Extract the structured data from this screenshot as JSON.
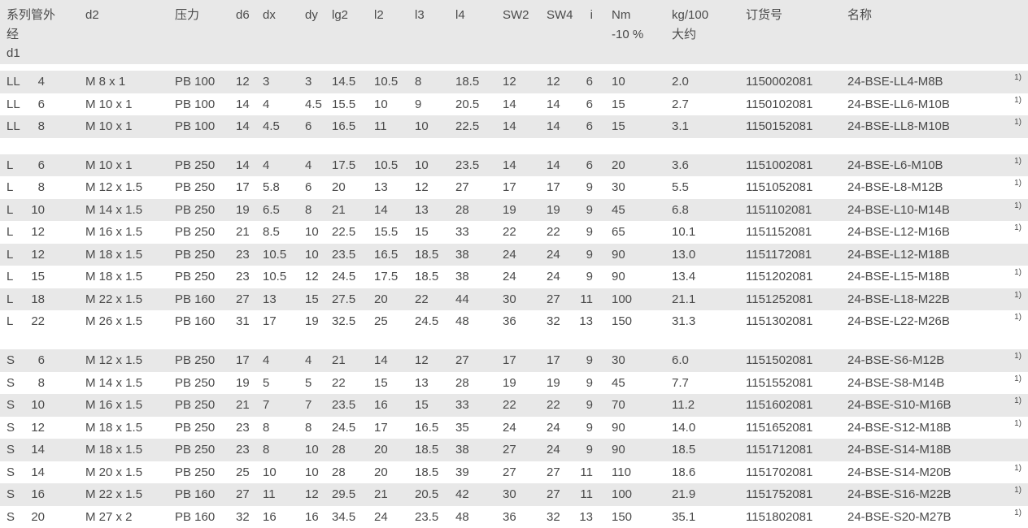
{
  "colors": {
    "stripe": "#e8e8e8",
    "text": "#4a4a4a"
  },
  "table": {
    "header": {
      "series_d1": "系列管外\n经\nd1",
      "d2": "d2",
      "pressure": "压力",
      "d6": "d6",
      "dx": "dx",
      "dy": "dy",
      "lg2": "lg2",
      "l2": "l2",
      "l3": "l3",
      "l4": "l4",
      "sw2": "SW2",
      "sw4": "SW4",
      "i": "i",
      "nm": "Nm\n-10 %",
      "kg": "kg/100\n大约",
      "order": "订货号",
      "name": "名称"
    },
    "sections": [
      {
        "rows": [
          {
            "series": "LL",
            "d1": "4",
            "d2": "M 8 x 1",
            "pressure": "PB 100",
            "d6": "12",
            "dx": "3",
            "dy": "3",
            "lg2": "14.5",
            "l2": "10.5",
            "l3": "8",
            "l4": "18.5",
            "sw2": "12",
            "sw4": "12",
            "i": "6",
            "nm": "10",
            "kg": "2.0",
            "order": "1150002081",
            "name": "24-BSE-LL4-M8B",
            "fn": "1)"
          },
          {
            "series": "LL",
            "d1": "6",
            "d2": "M 10 x 1",
            "pressure": "PB 100",
            "d6": "14",
            "dx": "4",
            "dy": "4.5",
            "lg2": "15.5",
            "l2": "10",
            "l3": "9",
            "l4": "20.5",
            "sw2": "14",
            "sw4": "14",
            "i": "6",
            "nm": "15",
            "kg": "2.7",
            "order": "1150102081",
            "name": "24-BSE-LL6-M10B",
            "fn": "1)"
          },
          {
            "series": "LL",
            "d1": "8",
            "d2": "M 10 x 1",
            "pressure": "PB 100",
            "d6": "14",
            "dx": "4.5",
            "dy": "6",
            "lg2": "16.5",
            "l2": "11",
            "l3": "10",
            "l4": "22.5",
            "sw2": "14",
            "sw4": "14",
            "i": "6",
            "nm": "15",
            "kg": "3.1",
            "order": "1150152081",
            "name": "24-BSE-LL8-M10B",
            "fn": "1)"
          }
        ]
      },
      {
        "rows": [
          {
            "series": "L",
            "d1": "6",
            "d2": "M 10 x 1",
            "pressure": "PB 250",
            "d6": "14",
            "dx": "4",
            "dy": "4",
            "lg2": "17.5",
            "l2": "10.5",
            "l3": "10",
            "l4": "23.5",
            "sw2": "14",
            "sw4": "14",
            "i": "6",
            "nm": "20",
            "kg": "3.6",
            "order": "1151002081",
            "name": "24-BSE-L6-M10B",
            "fn": "1)"
          },
          {
            "series": "L",
            "d1": "8",
            "d2": "M 12 x 1.5",
            "pressure": "PB 250",
            "d6": "17",
            "dx": "5.8",
            "dy": "6",
            "lg2": "20",
            "l2": "13",
            "l3": "12",
            "l4": "27",
            "sw2": "17",
            "sw4": "17",
            "i": "9",
            "nm": "30",
            "kg": "5.5",
            "order": "1151052081",
            "name": "24-BSE-L8-M12B",
            "fn": "1)"
          },
          {
            "series": "L",
            "d1": "10",
            "d2": "M 14 x 1.5",
            "pressure": "PB 250",
            "d6": "19",
            "dx": "6.5",
            "dy": "8",
            "lg2": "21",
            "l2": "14",
            "l3": "13",
            "l4": "28",
            "sw2": "19",
            "sw4": "19",
            "i": "9",
            "nm": "45",
            "kg": "6.8",
            "order": "1151102081",
            "name": "24-BSE-L10-M14B",
            "fn": "1)"
          },
          {
            "series": "L",
            "d1": "12",
            "d2": "M 16 x 1.5",
            "pressure": "PB 250",
            "d6": "21",
            "dx": "8.5",
            "dy": "10",
            "lg2": "22.5",
            "l2": "15.5",
            "l3": "15",
            "l4": "33",
            "sw2": "22",
            "sw4": "22",
            "i": "9",
            "nm": "65",
            "kg": "10.1",
            "order": "1151152081",
            "name": "24-BSE-L12-M16B",
            "fn": "1)"
          },
          {
            "series": "L",
            "d1": "12",
            "d2": "M 18 x 1.5",
            "pressure": "PB 250",
            "d6": "23",
            "dx": "10.5",
            "dy": "10",
            "lg2": "23.5",
            "l2": "16.5",
            "l3": "18.5",
            "l4": "38",
            "sw2": "24",
            "sw4": "24",
            "i": "9",
            "nm": "90",
            "kg": "13.0",
            "order": "1151172081",
            "name": "24-BSE-L12-M18B",
            "fn": ""
          },
          {
            "series": "L",
            "d1": "15",
            "d2": "M 18 x 1.5",
            "pressure": "PB 250",
            "d6": "23",
            "dx": "10.5",
            "dy": "12",
            "lg2": "24.5",
            "l2": "17.5",
            "l3": "18.5",
            "l4": "38",
            "sw2": "24",
            "sw4": "24",
            "i": "9",
            "nm": "90",
            "kg": "13.4",
            "order": "1151202081",
            "name": "24-BSE-L15-M18B",
            "fn": "1)"
          },
          {
            "series": "L",
            "d1": "18",
            "d2": "M 22 x 1.5",
            "pressure": "PB 160",
            "d6": "27",
            "dx": "13",
            "dy": "15",
            "lg2": "27.5",
            "l2": "20",
            "l3": "22",
            "l4": "44",
            "sw2": "30",
            "sw4": "27",
            "i": "11",
            "nm": "100",
            "kg": "21.1",
            "order": "1151252081",
            "name": "24-BSE-L18-M22B",
            "fn": "1)"
          },
          {
            "series": "L",
            "d1": "22",
            "d2": "M 26 x 1.5",
            "pressure": "PB 160",
            "d6": "31",
            "dx": "17",
            "dy": "19",
            "lg2": "32.5",
            "l2": "25",
            "l3": "24.5",
            "l4": "48",
            "sw2": "36",
            "sw4": "32",
            "i": "13",
            "nm": "150",
            "kg": "31.3",
            "order": "1151302081",
            "name": "24-BSE-L22-M26B",
            "fn": "1)"
          }
        ]
      },
      {
        "rows": [
          {
            "series": "S",
            "d1": "6",
            "d2": "M 12 x 1.5",
            "pressure": "PB 250",
            "d6": "17",
            "dx": "4",
            "dy": "4",
            "lg2": "21",
            "l2": "14",
            "l3": "12",
            "l4": "27",
            "sw2": "17",
            "sw4": "17",
            "i": "9",
            "nm": "30",
            "kg": "6.0",
            "order": "1151502081",
            "name": "24-BSE-S6-M12B",
            "fn": "1)"
          },
          {
            "series": "S",
            "d1": "8",
            "d2": "M 14 x 1.5",
            "pressure": "PB 250",
            "d6": "19",
            "dx": "5",
            "dy": "5",
            "lg2": "22",
            "l2": "15",
            "l3": "13",
            "l4": "28",
            "sw2": "19",
            "sw4": "19",
            "i": "9",
            "nm": "45",
            "kg": "7.7",
            "order": "1151552081",
            "name": "24-BSE-S8-M14B",
            "fn": "1)"
          },
          {
            "series": "S",
            "d1": "10",
            "d2": "M 16 x 1.5",
            "pressure": "PB 250",
            "d6": "21",
            "dx": "7",
            "dy": "7",
            "lg2": "23.5",
            "l2": "16",
            "l3": "15",
            "l4": "33",
            "sw2": "22",
            "sw4": "22",
            "i": "9",
            "nm": "70",
            "kg": "11.2",
            "order": "1151602081",
            "name": "24-BSE-S10-M16B",
            "fn": "1)"
          },
          {
            "series": "S",
            "d1": "12",
            "d2": "M 18 x 1.5",
            "pressure": "PB 250",
            "d6": "23",
            "dx": "8",
            "dy": "8",
            "lg2": "24.5",
            "l2": "17",
            "l3": "16.5",
            "l4": "35",
            "sw2": "24",
            "sw4": "24",
            "i": "9",
            "nm": "90",
            "kg": "14.0",
            "order": "1151652081",
            "name": "24-BSE-S12-M18B",
            "fn": "1)"
          },
          {
            "series": "S",
            "d1": "14",
            "d2": "M 18 x 1.5",
            "pressure": "PB 250",
            "d6": "23",
            "dx": "8",
            "dy": "10",
            "lg2": "28",
            "l2": "20",
            "l3": "18.5",
            "l4": "38",
            "sw2": "27",
            "sw4": "24",
            "i": "9",
            "nm": "90",
            "kg": "18.5",
            "order": "1151712081",
            "name": "24-BSE-S14-M18B",
            "fn": ""
          },
          {
            "series": "S",
            "d1": "14",
            "d2": "M 20 x 1.5",
            "pressure": "PB 250",
            "d6": "25",
            "dx": "10",
            "dy": "10",
            "lg2": "28",
            "l2": "20",
            "l3": "18.5",
            "l4": "39",
            "sw2": "27",
            "sw4": "27",
            "i": "11",
            "nm": "110",
            "kg": "18.6",
            "order": "1151702081",
            "name": "24-BSE-S14-M20B",
            "fn": "1)"
          },
          {
            "series": "S",
            "d1": "16",
            "d2": "M 22 x 1.5",
            "pressure": "PB 160",
            "d6": "27",
            "dx": "11",
            "dy": "12",
            "lg2": "29.5",
            "l2": "21",
            "l3": "20.5",
            "l4": "42",
            "sw2": "30",
            "sw4": "27",
            "i": "11",
            "nm": "100",
            "kg": "21.9",
            "order": "1151752081",
            "name": "24-BSE-S16-M22B",
            "fn": "1)"
          },
          {
            "series": "S",
            "d1": "20",
            "d2": "M 27 x 2",
            "pressure": "PB 160",
            "d6": "32",
            "dx": "16",
            "dy": "16",
            "lg2": "34.5",
            "l2": "24",
            "l3": "23.5",
            "l4": "48",
            "sw2": "36",
            "sw4": "32",
            "i": "13",
            "nm": "150",
            "kg": "35.1",
            "order": "1151802081",
            "name": "24-BSE-S20-M27B",
            "fn": "1)"
          }
        ]
      }
    ]
  }
}
